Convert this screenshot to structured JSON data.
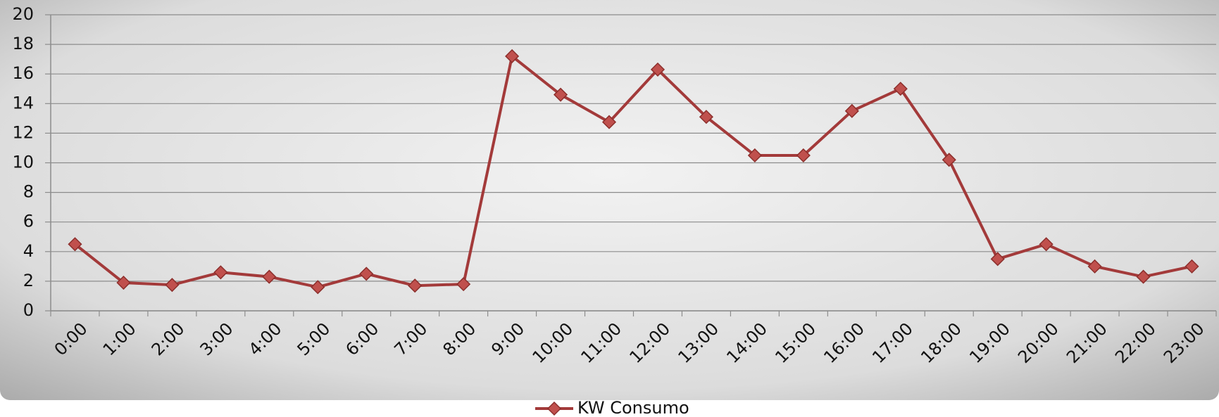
{
  "chart_data": {
    "type": "line",
    "categories": [
      "0:00",
      "1:00",
      "2:00",
      "3:00",
      "4:00",
      "5:00",
      "6:00",
      "7:00",
      "8:00",
      "9:00",
      "10:00",
      "11:00",
      "12:00",
      "13:00",
      "14:00",
      "15:00",
      "16:00",
      "17:00",
      "18:00",
      "19:00",
      "20:00",
      "21:00",
      "22:00",
      "23:00"
    ],
    "series": [
      {
        "name": "KW Consumo",
        "color": "#a33a3a",
        "values": [
          4.5,
          1.9,
          1.75,
          2.6,
          2.3,
          1.6,
          2.5,
          1.7,
          1.8,
          17.2,
          14.6,
          12.75,
          16.3,
          13.1,
          10.5,
          10.5,
          13.5,
          15.0,
          10.2,
          3.5,
          4.5,
          3.0,
          2.3,
          3.0
        ]
      }
    ],
    "ylim": [
      0,
      20
    ],
    "yticks": [
      0,
      2,
      4,
      6,
      8,
      10,
      12,
      14,
      16,
      18,
      20
    ],
    "grid": true,
    "legend": "bottom"
  }
}
